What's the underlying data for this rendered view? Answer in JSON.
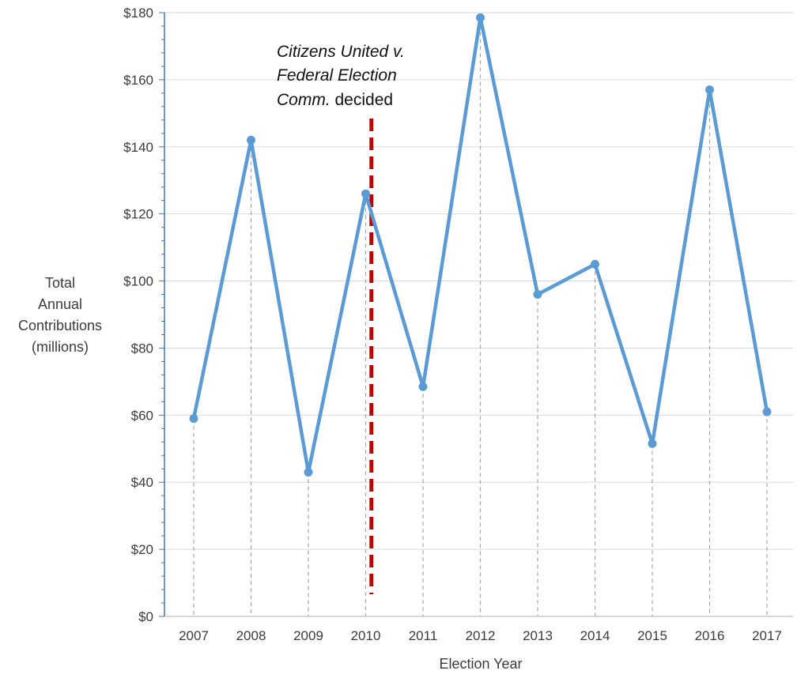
{
  "chart_data": {
    "type": "line",
    "title": "",
    "xlabel": "Election Year",
    "ylabel_lines": [
      "Total",
      "Annual",
      "Contributions",
      "(millions)"
    ],
    "categories": [
      "2007",
      "2008",
      "2009",
      "2010",
      "2011",
      "2012",
      "2013",
      "2014",
      "2015",
      "2016",
      "2017"
    ],
    "series": [
      {
        "values": [
          59,
          142,
          43,
          126,
          68.5,
          178.5,
          96,
          105,
          51.5,
          157,
          61
        ]
      }
    ],
    "ylim": [
      0,
      180
    ],
    "ytick_values": [
      0,
      20,
      40,
      60,
      80,
      100,
      120,
      140,
      160,
      180
    ],
    "ytick_labels": [
      "$0",
      "$20",
      "$40",
      "$60",
      "$80",
      "$100",
      "$120",
      "$140",
      "$160",
      "$180"
    ],
    "grid": "horizontal",
    "drop_lines": true,
    "annotation": {
      "line_1": "Citizens United v.",
      "line_2": "Federal Election",
      "line_3_italic": "Comm.",
      "line_3_rest": " decided",
      "marker_x": 2010.1
    },
    "colors": {
      "line": "#5b9bd5",
      "annotation_line": "#c00000",
      "grid": "#d9d9d9",
      "y_axis": "#4472c4",
      "x_axis": "#bfbfbf",
      "drop_line": "#a6a6a6"
    }
  }
}
